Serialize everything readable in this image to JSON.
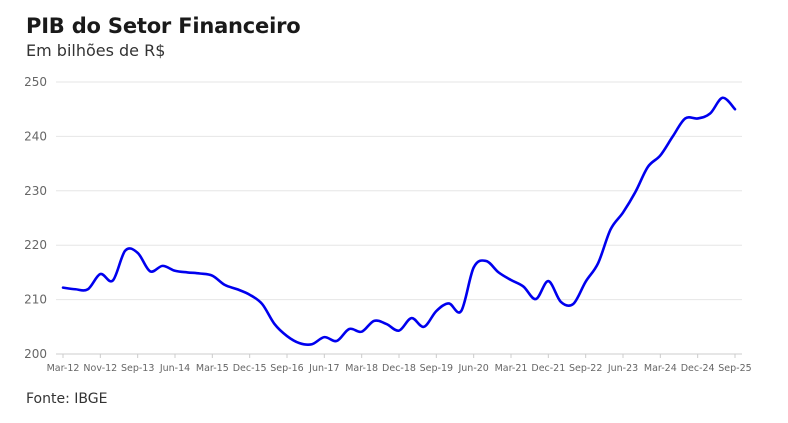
{
  "chart_data": {
    "type": "line",
    "title": "PIB do Setor Financeiro",
    "subtitle": "Em bilhões de R$",
    "source": "Fonte: IBGE",
    "xlabel": "",
    "ylabel": "",
    "ylim": [
      200,
      250
    ],
    "yticks": [
      200,
      210,
      220,
      230,
      240,
      250
    ],
    "grid": true,
    "legend": "none",
    "line_color": "#0000ee",
    "x_tick_labels": [
      "Mar-12",
      "Nov-12",
      "Sep-13",
      "Jun-14",
      "Mar-15",
      "Dec-15",
      "Sep-16",
      "Jun-17",
      "Mar-18",
      "Dec-18",
      "Sep-19",
      "Jun-20",
      "Mar-21",
      "Dec-21",
      "Sep-22",
      "Jun-23",
      "Mar-24",
      "Dec-24",
      "Sep-25"
    ],
    "series": [
      {
        "x": [
          "Mar-12",
          "Jun-12",
          "Sep-12",
          "Dec-12",
          "Mar-13",
          "Jun-13",
          "Sep-13",
          "Dec-13",
          "Mar-14",
          "Jun-14",
          "Sep-14",
          "Dec-14",
          "Mar-15",
          "Jun-15",
          "Sep-15",
          "Dec-15",
          "Mar-16",
          "Jun-16",
          "Sep-16",
          "Dec-16",
          "Mar-17",
          "Jun-17",
          "Sep-17",
          "Dec-17",
          "Mar-18",
          "Jun-18",
          "Sep-18",
          "Dec-18",
          "Mar-19",
          "Jun-19",
          "Sep-19",
          "Dec-19",
          "Mar-20",
          "Jun-20",
          "Sep-20",
          "Dec-20",
          "Mar-21",
          "Jun-21",
          "Sep-21",
          "Dec-21",
          "Mar-22",
          "Jun-22",
          "Sep-22",
          "Dec-22",
          "Mar-23",
          "Jun-23",
          "Sep-23",
          "Dec-23",
          "Mar-24",
          "Jun-24",
          "Sep-24",
          "Dec-24",
          "Mar-25",
          "Jun-25",
          "Sep-25"
        ],
        "values": [
          212.2,
          211.9,
          211.9,
          214.7,
          213.5,
          219.0,
          218.6,
          215.2,
          216.2,
          215.3,
          215.0,
          214.8,
          214.4,
          212.7,
          211.9,
          210.9,
          209.2,
          205.5,
          203.3,
          202.0,
          201.8,
          203.1,
          202.4,
          204.6,
          204.1,
          206.1,
          205.5,
          204.3,
          206.6,
          205.0,
          207.9,
          209.3,
          207.9,
          215.9,
          217.1,
          215.0,
          213.6,
          212.4,
          210.1,
          213.4,
          209.6,
          209.2,
          213.3,
          216.7,
          222.9,
          226.0,
          229.8,
          234.4,
          236.5,
          240.0,
          243.3,
          243.3,
          244.2,
          247.1,
          245.0
        ]
      }
    ]
  }
}
